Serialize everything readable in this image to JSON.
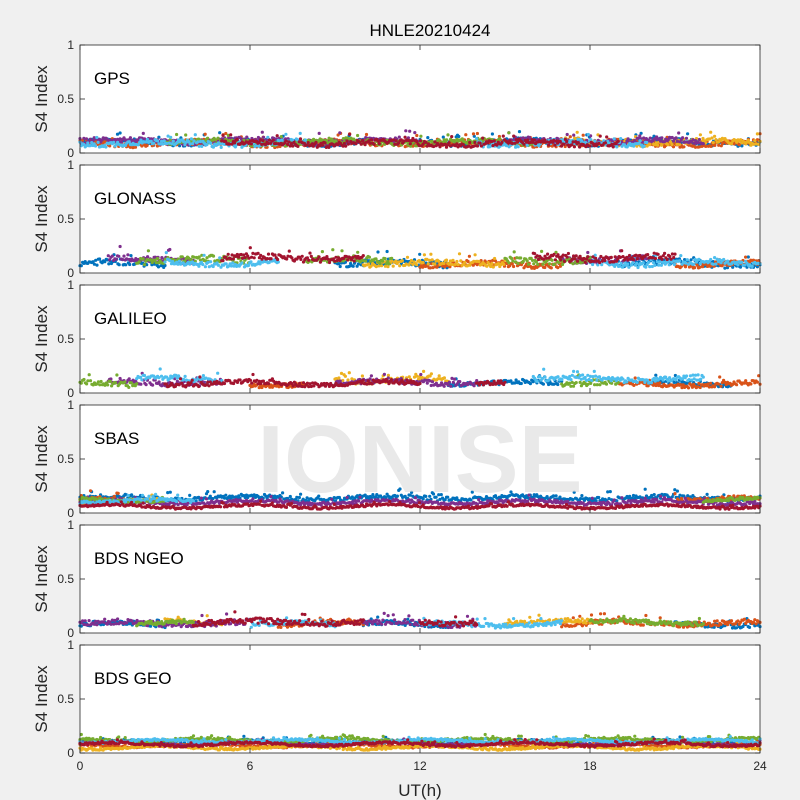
{
  "figure": {
    "title": "HNLE20210424",
    "xlabel": "UT(h)",
    "watermark": "IONISE"
  },
  "chart_data": {
    "type": "scatter",
    "xlim": [
      0,
      24
    ],
    "ylim": [
      0,
      1
    ],
    "xticks": [
      "0",
      "6",
      "12",
      "18",
      "24"
    ],
    "xtick_values": [
      0,
      6,
      12,
      18,
      24
    ],
    "yticks": [
      "0",
      "0.5",
      "1"
    ],
    "ytick_values": [
      0,
      0.5,
      1
    ],
    "ylabel": "S4 Index",
    "colors": [
      "#0072BD",
      "#D95319",
      "#EDB120",
      "#7E2F8E",
      "#77AC30",
      "#4DBEEE",
      "#A2142F"
    ],
    "grid": false,
    "panels": [
      {
        "label": "GPS",
        "series": [
          {
            "base": 0.1,
            "spread": 0.025,
            "segments": [
              [
                0,
                10
              ],
              [
                12,
                24
              ]
            ]
          },
          {
            "base": 0.09,
            "spread": 0.025,
            "segments": [
              [
                0,
                24
              ]
            ]
          },
          {
            "base": 0.1,
            "spread": 0.025,
            "segments": [
              [
                17,
                24
              ]
            ]
          },
          {
            "base": 0.11,
            "spread": 0.025,
            "segments": [
              [
                0,
                12
              ],
              [
                15,
                22
              ]
            ]
          },
          {
            "base": 0.1,
            "spread": 0.025,
            "segments": [
              [
                3,
                16
              ]
            ]
          },
          {
            "base": 0.09,
            "spread": 0.025,
            "segments": [
              [
                0,
                8
              ],
              [
                14,
                20
              ]
            ]
          },
          {
            "base": 0.09,
            "spread": 0.025,
            "segments": [
              [
                5,
                19
              ]
            ]
          }
        ]
      },
      {
        "label": "GLONASS",
        "series": [
          {
            "base": 0.09,
            "spread": 0.03,
            "segments": [
              [
                0,
                3
              ],
              [
                9,
                13
              ],
              [
                19,
                24
              ]
            ]
          },
          {
            "base": 0.08,
            "spread": 0.025,
            "segments": [
              [
                12,
                17
              ],
              [
                21,
                24
              ]
            ]
          },
          {
            "base": 0.09,
            "spread": 0.025,
            "segments": [
              [
                10,
                15
              ]
            ]
          },
          {
            "base": 0.13,
            "spread": 0.03,
            "segments": [
              [
                1,
                4
              ],
              [
                17,
                20
              ]
            ]
          },
          {
            "base": 0.12,
            "spread": 0.03,
            "segments": [
              [
                2,
                6
              ],
              [
                8,
                11
              ],
              [
                15,
                18
              ]
            ]
          },
          {
            "base": 0.09,
            "spread": 0.025,
            "segments": [
              [
                3,
                7
              ],
              [
                18,
                24
              ]
            ]
          },
          {
            "base": 0.14,
            "spread": 0.03,
            "segments": [
              [
                5,
                10
              ],
              [
                16,
                21
              ]
            ]
          }
        ]
      },
      {
        "label": "GALILEO",
        "series": [
          {
            "base": 0.09,
            "spread": 0.02,
            "segments": [
              [
                13,
                17
              ],
              [
                20,
                23
              ]
            ]
          },
          {
            "base": 0.08,
            "spread": 0.02,
            "segments": [
              [
                6,
                8
              ],
              [
                19,
                24
              ]
            ]
          },
          {
            "base": 0.12,
            "spread": 0.025,
            "segments": [
              [
                9,
                13
              ]
            ]
          },
          {
            "base": 0.1,
            "spread": 0.025,
            "segments": [
              [
                1,
                5
              ],
              [
                9,
                14
              ]
            ]
          },
          {
            "base": 0.09,
            "spread": 0.025,
            "segments": [
              [
                0,
                2
              ],
              [
                17,
                19
              ]
            ]
          },
          {
            "base": 0.13,
            "spread": 0.025,
            "segments": [
              [
                2,
                5
              ],
              [
                16,
                22
              ]
            ]
          },
          {
            "base": 0.09,
            "spread": 0.02,
            "segments": [
              [
                3,
                12
              ],
              [
                14,
                15
              ]
            ]
          }
        ]
      },
      {
        "label": "SBAS",
        "series": [
          {
            "base": 0.14,
            "spread": 0.02,
            "segments": [
              [
                0,
                24
              ]
            ]
          },
          {
            "base": 0.13,
            "spread": 0.02,
            "segments": [
              [
                0,
                2
              ],
              [
                21,
                24
              ]
            ]
          },
          {
            "base": 0.11,
            "spread": 0.015,
            "segments": [
              [
                0,
                3
              ]
            ]
          },
          {
            "base": 0.1,
            "spread": 0.015,
            "segments": [
              [
                0,
                24
              ]
            ]
          },
          {
            "base": 0.12,
            "spread": 0.015,
            "segments": [
              [
                0,
                3
              ],
              [
                22,
                24
              ]
            ]
          },
          {
            "base": 0.11,
            "spread": 0.015,
            "segments": [
              [
                0,
                4
              ]
            ]
          },
          {
            "base": 0.06,
            "spread": 0.01,
            "segments": [
              [
                0,
                24
              ]
            ]
          }
        ]
      },
      {
        "label": "BDS NGEO",
        "series": [
          {
            "base": 0.08,
            "spread": 0.02,
            "segments": [
              [
                0,
                3
              ],
              [
                10,
                13
              ],
              [
                21,
                24
              ]
            ]
          },
          {
            "base": 0.09,
            "spread": 0.025,
            "segments": [
              [
                7,
                10
              ],
              [
                17,
                24
              ]
            ]
          },
          {
            "base": 0.1,
            "spread": 0.02,
            "segments": [
              [
                3,
                5
              ],
              [
                15,
                18
              ]
            ]
          },
          {
            "base": 0.09,
            "spread": 0.025,
            "segments": [
              [
                0,
                6
              ],
              [
                10,
                14
              ]
            ]
          },
          {
            "base": 0.1,
            "spread": 0.02,
            "segments": [
              [
                2,
                4
              ],
              [
                18,
                22
              ]
            ]
          },
          {
            "base": 0.08,
            "spread": 0.02,
            "segments": [
              [
                6,
                9
              ],
              [
                12,
                17
              ]
            ]
          },
          {
            "base": 0.1,
            "spread": 0.025,
            "segments": [
              [
                4,
                10
              ],
              [
                12,
                14
              ]
            ]
          }
        ]
      },
      {
        "label": "BDS GEO",
        "series": [
          {
            "base": 0.1,
            "spread": 0.012,
            "segments": [
              [
                0,
                24
              ]
            ]
          },
          {
            "base": 0.07,
            "spread": 0.01,
            "segments": [
              [
                0,
                24
              ]
            ]
          },
          {
            "base": 0.05,
            "spread": 0.01,
            "segments": [
              [
                0,
                24
              ]
            ]
          },
          {
            "base": 0.09,
            "spread": 0.01,
            "segments": [
              [
                0,
                24
              ]
            ]
          },
          {
            "base": 0.12,
            "spread": 0.012,
            "segments": [
              [
                0,
                24
              ]
            ]
          },
          {
            "base": 0.11,
            "spread": 0.01,
            "segments": [
              [
                0,
                24
              ]
            ]
          },
          {
            "base": 0.08,
            "spread": 0.01,
            "segments": [
              [
                0,
                24
              ]
            ]
          }
        ]
      }
    ]
  }
}
